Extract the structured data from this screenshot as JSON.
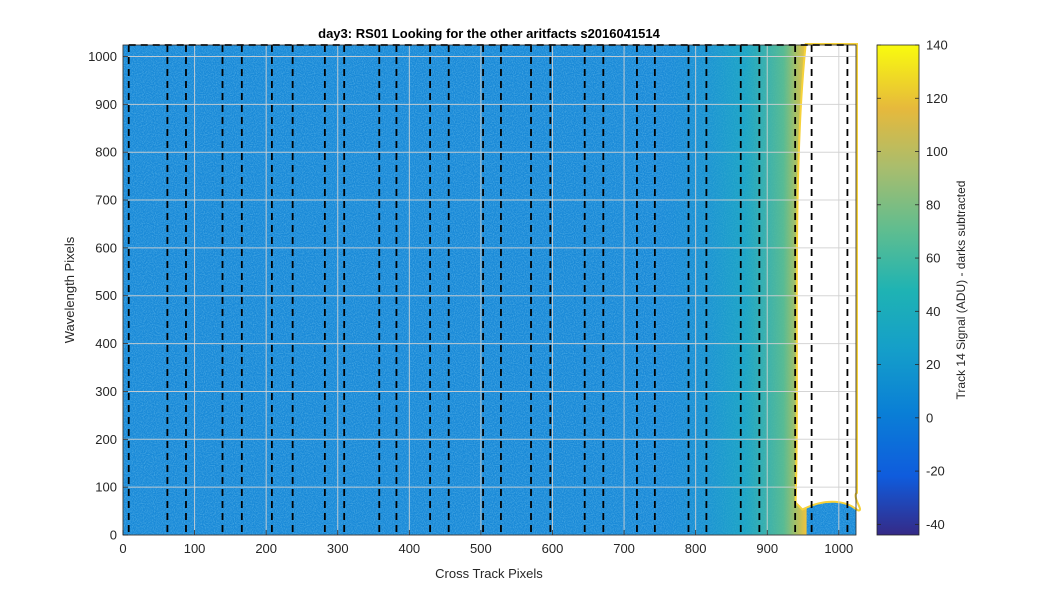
{
  "chart_data": {
    "type": "heatmap",
    "title": "day3: RS01  Looking for the other aritfacts  s2016041514",
    "xlabel": "Cross Track Pixels",
    "ylabel": "Wavelength Pixels",
    "xlim": [
      0,
      1024
    ],
    "ylim": [
      0,
      1024
    ],
    "x_ticks": [
      0,
      100,
      200,
      300,
      400,
      500,
      600,
      700,
      800,
      900,
      1000
    ],
    "y_ticks": [
      0,
      100,
      200,
      300,
      400,
      500,
      600,
      700,
      800,
      900,
      1000
    ],
    "grid": true,
    "colormap": "parula",
    "colorbar": {
      "label": "Track 14 Signal (ADU) - darks subtracted",
      "range": [
        -44,
        140
      ],
      "ticks": [
        -40,
        -20,
        0,
        20,
        40,
        60,
        80,
        100,
        120,
        140
      ]
    },
    "dashed_lines_x": [
      8,
      62,
      88,
      139,
      166,
      208,
      237,
      282,
      309,
      358,
      382,
      429,
      455,
      503,
      528,
      570,
      597,
      645,
      671,
      718,
      743,
      790,
      815,
      863,
      889,
      939,
      962,
      1012
    ],
    "box_top_y": 1024,
    "unobserved_region": {
      "x_start": 955,
      "x_end": 1024,
      "floor_y": 60
    }
  }
}
